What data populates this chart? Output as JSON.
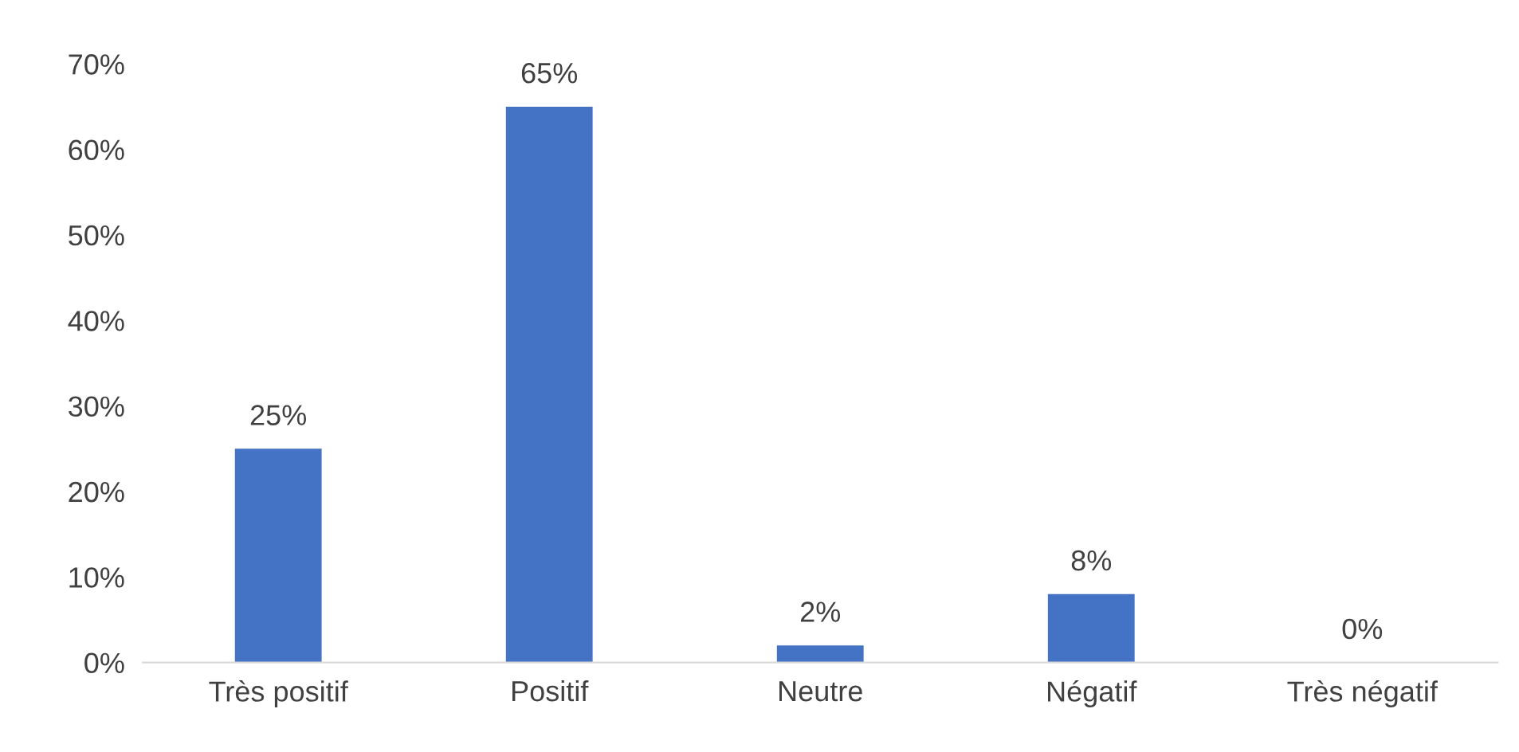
{
  "chart_data": {
    "type": "bar",
    "categories": [
      "Très positif",
      "Positif",
      "Neutre",
      "Négatif",
      "Très négatif"
    ],
    "values": [
      25,
      65,
      2,
      8,
      0
    ],
    "value_labels": [
      "25%",
      "65%",
      "2%",
      "8%",
      "0%"
    ],
    "color": "#4472c4",
    "ylim": [
      0,
      70
    ],
    "yticks": [
      {
        "value": 0,
        "label": "0%"
      },
      {
        "value": 10,
        "label": "10%"
      },
      {
        "value": 20,
        "label": "20%"
      },
      {
        "value": 30,
        "label": "30%"
      },
      {
        "value": 40,
        "label": "40%"
      },
      {
        "value": 50,
        "label": "50%"
      },
      {
        "value": 60,
        "label": "60%"
      },
      {
        "value": 70,
        "label": "70%"
      }
    ],
    "grid": false,
    "legend": false
  }
}
